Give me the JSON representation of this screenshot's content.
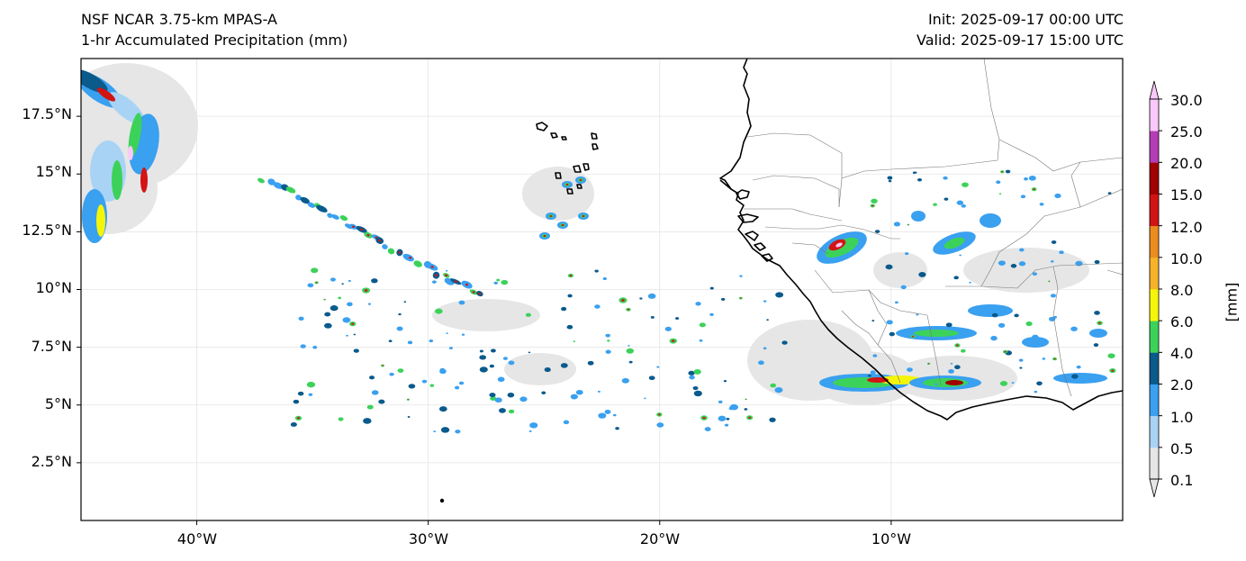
{
  "titles": {
    "left_line1": "NSF NCAR 3.75-km MPAS-A",
    "left_line2": "1-hr Accumulated Precipitation (mm)",
    "right_line1": "Init: 2025-09-17 00:00 UTC",
    "right_line2": "Valid: 2025-09-17 15:00 UTC"
  },
  "axes": {
    "lat_labels": [
      "17.5°N",
      "15°N",
      "12.5°N",
      "10°N",
      "7.5°N",
      "5°N",
      "2.5°N"
    ],
    "lon_labels": [
      "40°W",
      "30°W",
      "20°W",
      "10°W"
    ],
    "lat_range": [
      0,
      20
    ],
    "lon_range": [
      -45,
      0
    ],
    "grid": true
  },
  "colorbar": {
    "unit_label": "[mm]",
    "levels": [
      "0.1",
      "0.5",
      "1.0",
      "2.0",
      "4.0",
      "6.0",
      "8.0",
      "10.0",
      "12.0",
      "15.0",
      "20.0",
      "25.0",
      "30.0"
    ],
    "colors": [
      "#e6e6e6",
      "#a8d3f5",
      "#3aa0f0",
      "#0a5a8c",
      "#3cd25a",
      "#f5f50a",
      "#f5b428",
      "#eb8c1e",
      "#d21414",
      "#a00000",
      "#b43cb4",
      "#fac8fa"
    ],
    "extend": "both"
  },
  "map": {
    "style": "filled precipitation contours over coastlines and country borders",
    "features": [
      "coastline",
      "country-borders",
      "precipitation-field"
    ]
  }
}
